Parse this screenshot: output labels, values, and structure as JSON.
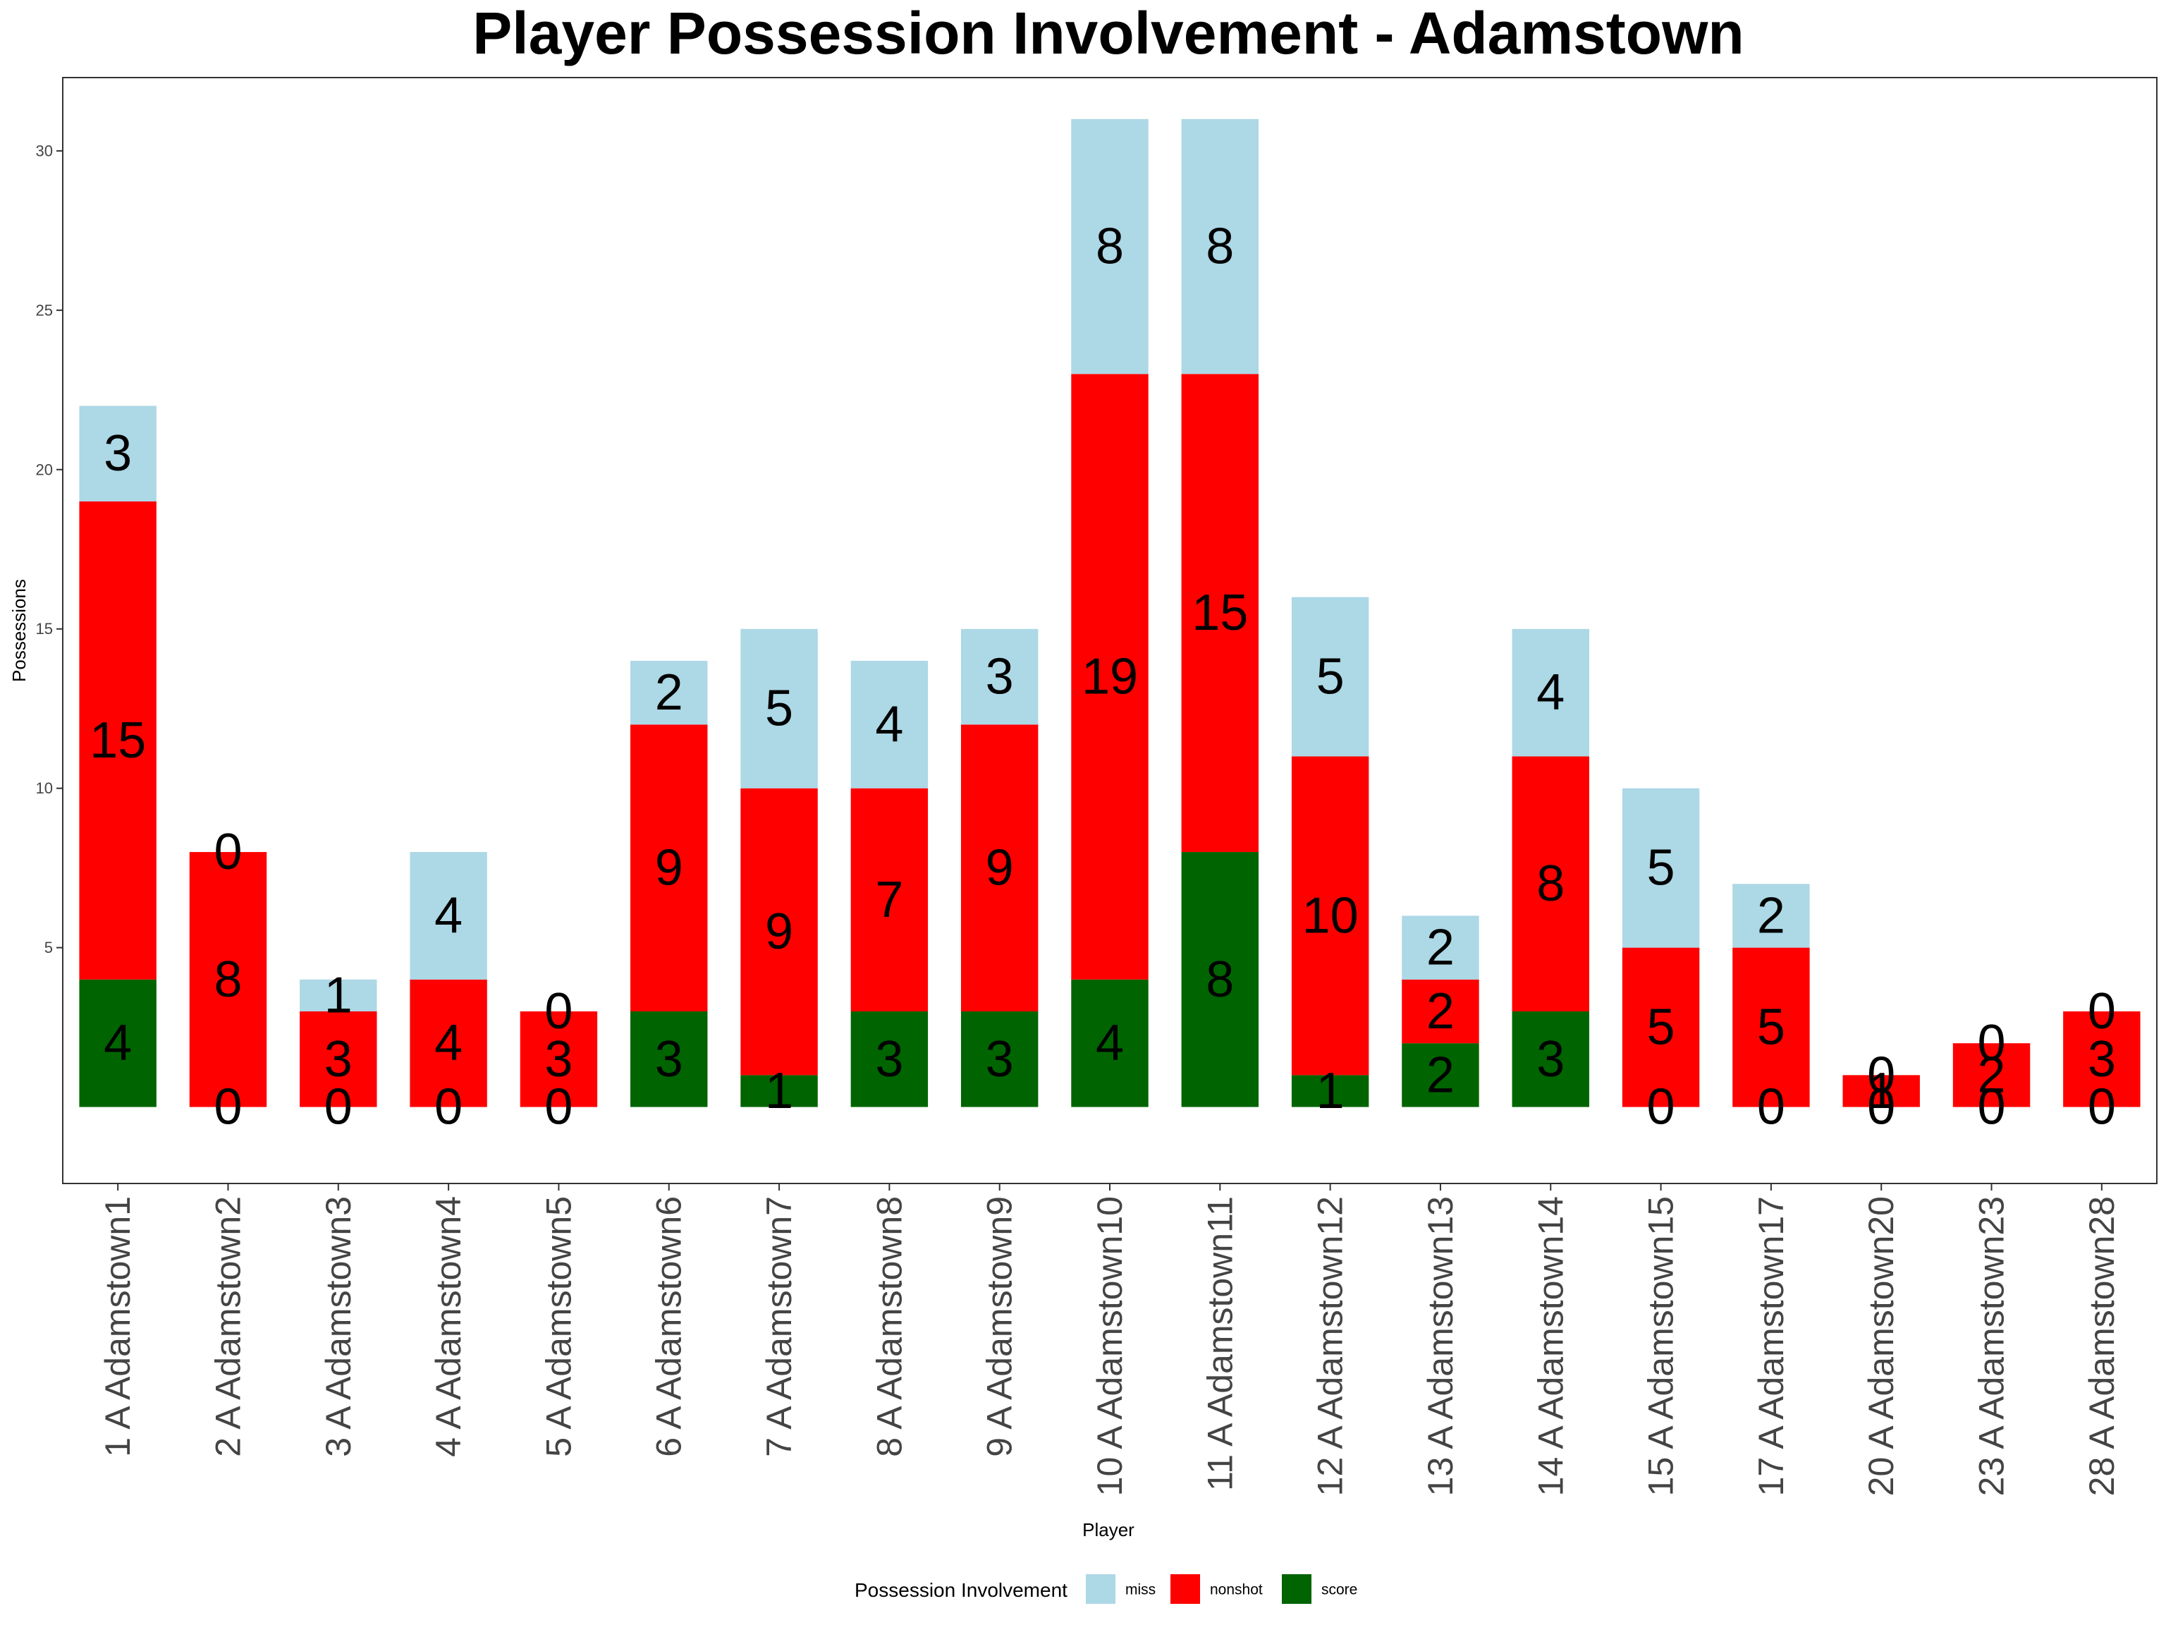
{
  "chart_data": {
    "type": "bar",
    "stacked": true,
    "title": "Player Possession Involvement - Adamstown",
    "xlabel": "Player",
    "ylabel": "Possessions",
    "ylim": [
      -2.4,
      32.3
    ],
    "yticks": [
      5,
      10,
      15,
      20,
      25,
      30
    ],
    "grid": false,
    "legend": {
      "title": "Possession Involvement",
      "position": "bottom"
    },
    "categories": [
      "1 A Adamstown1",
      "2 A Adamstown2",
      "3 A Adamstown3",
      "4 A Adamstown4",
      "5 A Adamstown5",
      "6 A Adamstown6",
      "7 A Adamstown7",
      "8 A Adamstown8",
      "9 A Adamstown9",
      "10 A Adamstown10",
      "11 A Adamstown11",
      "12 A Adamstown12",
      "13 A Adamstown13",
      "14 A Adamstown14",
      "15 A Adamstown15",
      "17 A Adamstown17",
      "20 A Adamstown20",
      "23 A Adamstown23",
      "28 A Adamstown28"
    ],
    "series": [
      {
        "name": "score",
        "color": "#006400",
        "values": [
          4,
          0,
          0,
          0,
          0,
          3,
          1,
          3,
          3,
          4,
          8,
          1,
          2,
          3,
          0,
          0,
          0,
          0,
          0
        ]
      },
      {
        "name": "nonshot",
        "color": "#ff0000",
        "values": [
          15,
          8,
          3,
          4,
          3,
          9,
          9,
          7,
          9,
          19,
          15,
          10,
          2,
          8,
          5,
          5,
          1,
          2,
          3
        ]
      },
      {
        "name": "miss",
        "color": "#add8e6",
        "values": [
          3,
          0,
          1,
          4,
          0,
          2,
          5,
          4,
          3,
          8,
          8,
          5,
          2,
          4,
          5,
          2,
          0,
          0,
          0
        ]
      }
    ],
    "legend_order": [
      "miss",
      "nonshot",
      "score"
    ]
  }
}
